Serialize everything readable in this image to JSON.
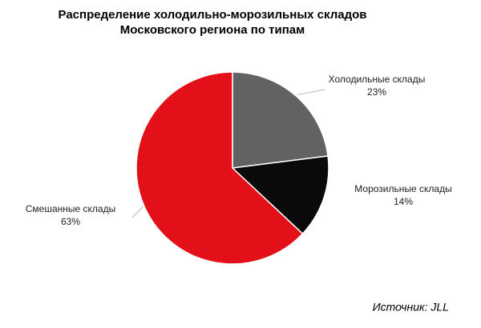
{
  "chart_data": {
    "type": "pie",
    "title": [
      "Распределение холодильно-морозильных складов",
      "Московского региона по типам"
    ],
    "categories": [
      "Холодильные склады",
      "Морозильные склады",
      "Смешанные склады"
    ],
    "values": [
      23,
      14,
      63
    ],
    "value_labels": [
      "23%",
      "14%",
      "63%"
    ],
    "colors": [
      "#616264",
      "#0a0a0a",
      "#e3101a"
    ],
    "source": "Источник: JLL"
  }
}
